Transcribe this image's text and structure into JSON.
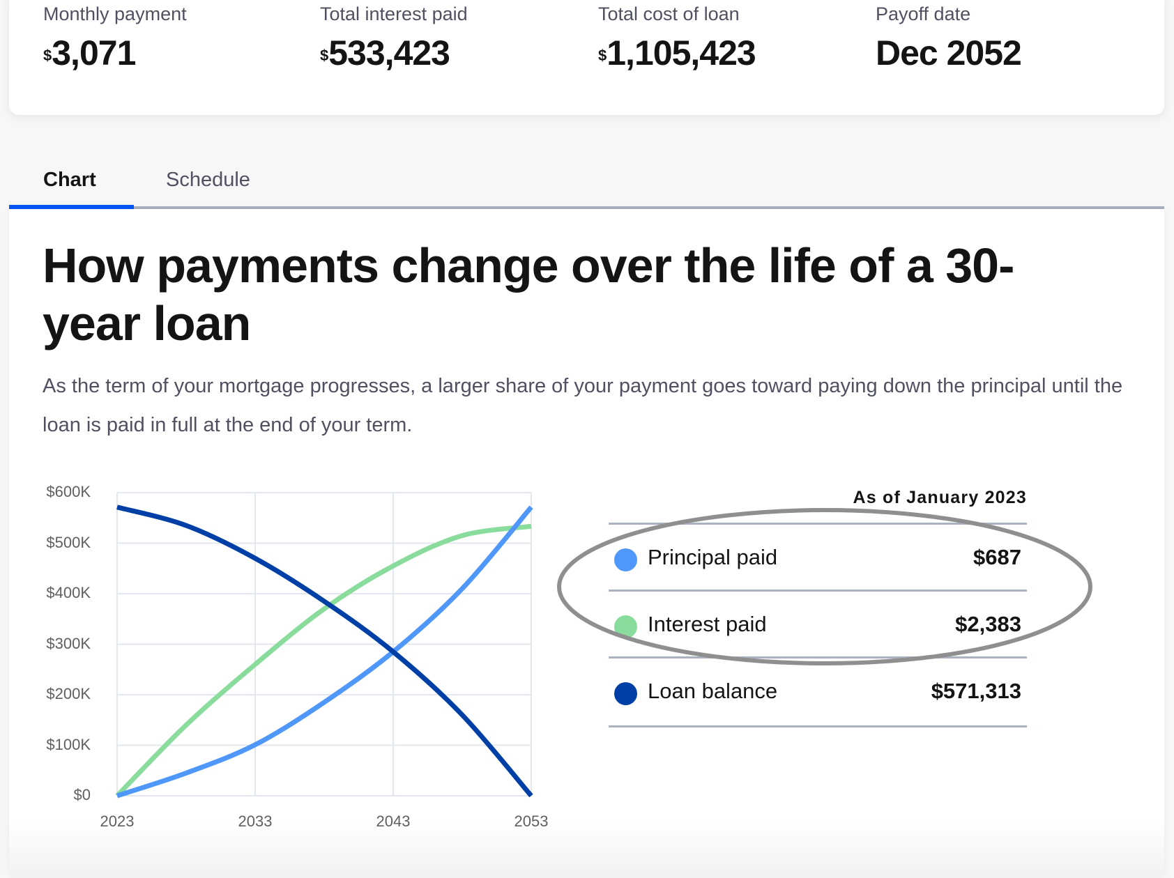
{
  "summary": {
    "stats": [
      {
        "label": "Monthly payment",
        "currency": "$",
        "value": "3,071"
      },
      {
        "label": "Total interest paid",
        "currency": "$",
        "value": "533,423"
      },
      {
        "label": "Total cost of loan",
        "currency": "$",
        "value": "1,105,423"
      },
      {
        "label": "Payoff date",
        "currency": "",
        "value": "Dec 2052"
      }
    ]
  },
  "tabs": [
    {
      "label": "Chart",
      "active": true
    },
    {
      "label": "Schedule",
      "active": false
    }
  ],
  "main": {
    "title": "How payments change over the life of a 30-year loan",
    "description": "As the term of your mortgage progresses, a larger share of your payment goes toward paying down the principal until the loan is paid in full at the end of your term."
  },
  "legend": {
    "title": "As of January 2023",
    "rows": [
      {
        "label": "Principal paid",
        "value": "$687",
        "color": "#4f98fa"
      },
      {
        "label": "Interest paid",
        "value": "$2,383",
        "color": "#8adc9c"
      },
      {
        "label": "Loan balance",
        "value": "$571,313",
        "color": "#0040a6"
      }
    ]
  },
  "colors": {
    "accent": "#0055f5",
    "principal": "#4f98fa",
    "interest": "#8adc9c",
    "balance": "#0040a6",
    "annotation": "#8f8f8f"
  },
  "chart_data": {
    "type": "line",
    "title": "",
    "xlabel": "",
    "ylabel": "",
    "x": [
      2023,
      2028,
      2033,
      2038,
      2043,
      2048,
      2053
    ],
    "x_ticks": [
      "2023",
      "2033",
      "2043",
      "2053"
    ],
    "y_ticks": [
      "$0",
      "$100K",
      "$200K",
      "$300K",
      "$400K",
      "$500K",
      "$600K"
    ],
    "ylim": [
      0,
      600000
    ],
    "grid": true,
    "series": [
      {
        "name": "Principal paid",
        "color": "#4f98fa",
        "values": [
          0,
          45000,
          101000,
          185000,
          285000,
          410000,
          571313
        ]
      },
      {
        "name": "Interest paid",
        "color": "#8adc9c",
        "values": [
          0,
          140000,
          260000,
          370000,
          455000,
          515000,
          533423
        ]
      },
      {
        "name": "Loan balance",
        "color": "#0040a6",
        "values": [
          571313,
          535000,
          470000,
          385000,
          285000,
          160000,
          0
        ]
      }
    ]
  }
}
